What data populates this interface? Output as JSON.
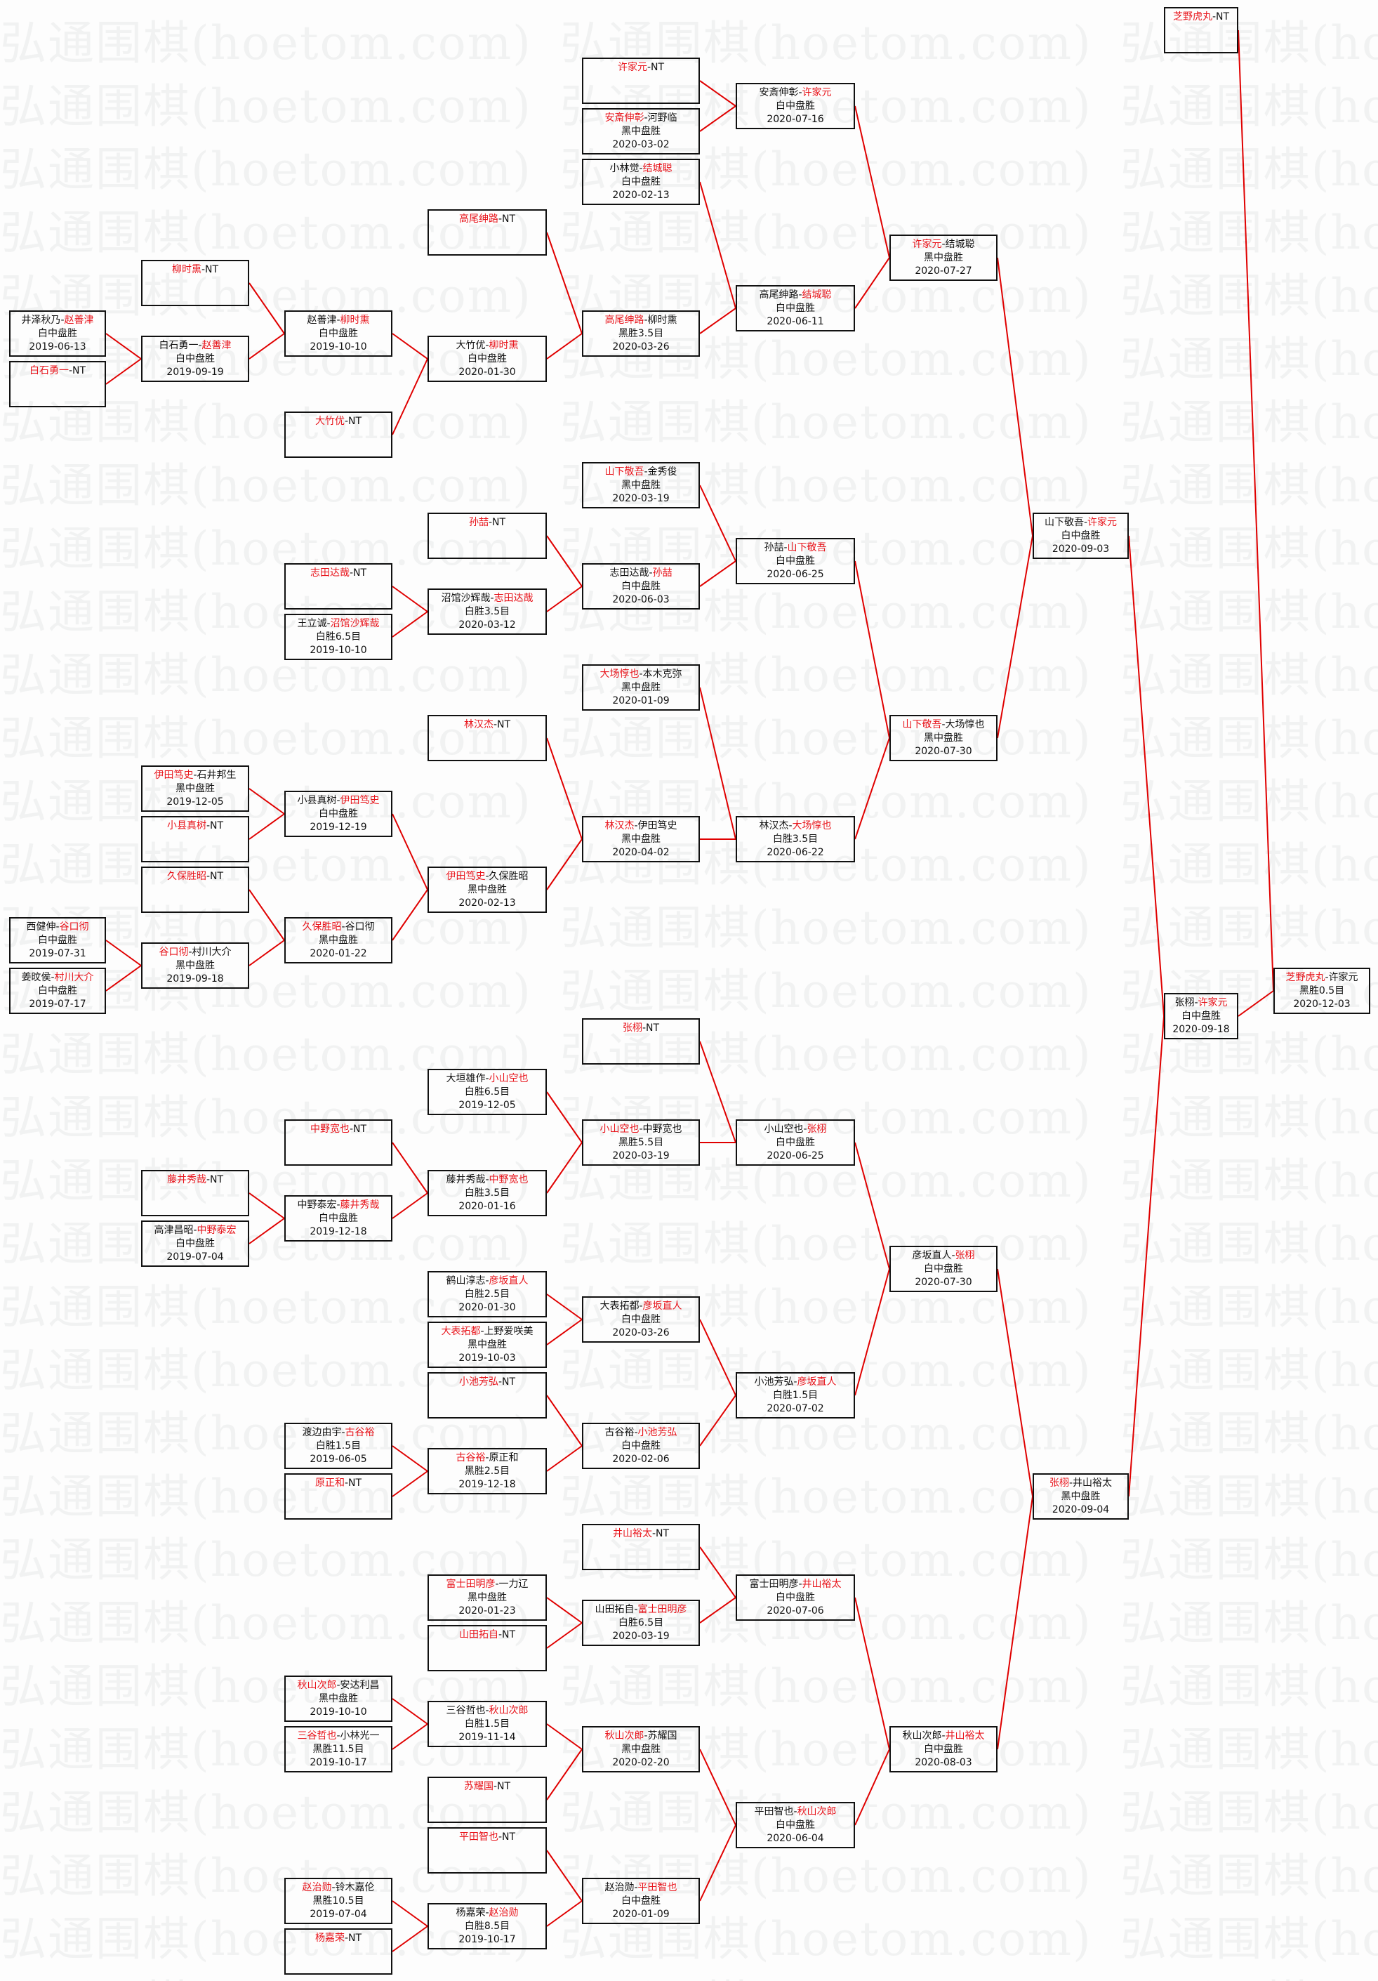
{
  "watermark": "弘通围棋(hoetom.com)",
  "colors": {
    "winner": "#e8141b",
    "link": "#e00000",
    "border": "#111111",
    "background": "#fdfdfd"
  },
  "bye_label": "NT",
  "separator": "-",
  "matches": [
    {
      "id": "m1",
      "players": [
        "井泽秋乃",
        "赵善津"
      ],
      "winner": 1,
      "result": "白中盘胜",
      "date": "2019-06-13",
      "next": "m3"
    },
    {
      "id": "m2",
      "players": [
        "白石勇一"
      ],
      "winner": 0,
      "bye": true,
      "next": "m3"
    },
    {
      "id": "m3",
      "players": [
        "白石勇一",
        "赵善津"
      ],
      "winner": 1,
      "result": "白中盘胜",
      "date": "2019-09-19",
      "next": "m5"
    },
    {
      "id": "m4",
      "players": [
        "柳时熏"
      ],
      "winner": 0,
      "bye": true,
      "next": "m5"
    },
    {
      "id": "m5",
      "players": [
        "赵善津",
        "柳时熏"
      ],
      "winner": 1,
      "result": "白中盘胜",
      "date": "2019-10-10",
      "next": "m7"
    },
    {
      "id": "m6",
      "players": [
        "大竹优"
      ],
      "winner": 0,
      "bye": true,
      "next": "m7"
    },
    {
      "id": "m7",
      "players": [
        "大竹优",
        "柳时熏"
      ],
      "winner": 1,
      "result": "白中盘胜",
      "date": "2020-01-30",
      "next": "m9"
    },
    {
      "id": "m8",
      "players": [
        "高尾绅路"
      ],
      "winner": 0,
      "bye": true,
      "next": "m9"
    },
    {
      "id": "m9",
      "players": [
        "高尾绅路",
        "柳时熏"
      ],
      "winner": 0,
      "result": "黑胜3.5目",
      "date": "2020-03-26",
      "next": "m13"
    },
    {
      "id": "m10",
      "players": [
        "许家元"
      ],
      "winner": 0,
      "bye": true,
      "next": "m12"
    },
    {
      "id": "m11",
      "players": [
        "安斎伸彰",
        "河野临"
      ],
      "winner": 0,
      "result": "黑中盘胜",
      "date": "2020-03-02",
      "next": "m12"
    },
    {
      "id": "m12",
      "players": [
        "安斎伸彰",
        "许家元"
      ],
      "winner": 1,
      "result": "白中盘胜",
      "date": "2020-07-16",
      "next": "m15"
    },
    {
      "id": "m14",
      "players": [
        "小林觉",
        "结城聪"
      ],
      "winner": 1,
      "result": "白中盘胜",
      "date": "2020-02-13",
      "next": "m13"
    },
    {
      "id": "m13",
      "players": [
        "高尾绅路",
        "结城聪"
      ],
      "winner": 1,
      "result": "白中盘胜",
      "date": "2020-06-11",
      "next": "m15"
    },
    {
      "id": "m15",
      "players": [
        "许家元",
        "结城聪"
      ],
      "winner": 0,
      "result": "黑中盘胜",
      "date": "2020-07-27",
      "next": "m37"
    },
    {
      "id": "m16",
      "players": [
        "志田达哉"
      ],
      "winner": 0,
      "bye": true,
      "next": "m18"
    },
    {
      "id": "m17",
      "players": [
        "王立诚",
        "沼馆沙辉哉"
      ],
      "winner": 1,
      "result": "白胜6.5目",
      "date": "2019-10-10",
      "next": "m18"
    },
    {
      "id": "m18",
      "players": [
        "沼馆沙辉哉",
        "志田达哉"
      ],
      "winner": 1,
      "result": "白胜3.5目",
      "date": "2020-03-12",
      "next": "m20"
    },
    {
      "id": "m19",
      "players": [
        "孙喆"
      ],
      "winner": 0,
      "bye": true,
      "next": "m20"
    },
    {
      "id": "m20",
      "players": [
        "志田达哉",
        "孙喆"
      ],
      "winner": 1,
      "result": "白中盘胜",
      "date": "2020-06-03",
      "next": "m22"
    },
    {
      "id": "m21",
      "players": [
        "山下敬吾",
        "金秀俊"
      ],
      "winner": 0,
      "result": "黑中盘胜",
      "date": "2020-03-19",
      "next": "m22"
    },
    {
      "id": "m22",
      "players": [
        "孙喆",
        "山下敬吾"
      ],
      "winner": 1,
      "result": "白中盘胜",
      "date": "2020-06-25",
      "next": "m36"
    },
    {
      "id": "m23",
      "players": [
        "伊田笃史",
        "石井邦生"
      ],
      "winner": 0,
      "result": "黑中盘胜",
      "date": "2019-12-05",
      "next": "m25"
    },
    {
      "id": "m24",
      "players": [
        "小县真树"
      ],
      "winner": 0,
      "bye": true,
      "next": "m25"
    },
    {
      "id": "m25",
      "players": [
        "小县真树",
        "伊田笃史"
      ],
      "winner": 1,
      "result": "白中盘胜",
      "date": "2019-12-19",
      "next": "m31"
    },
    {
      "id": "m26",
      "players": [
        "西健伸",
        "谷口彻"
      ],
      "winner": 1,
      "result": "白中盘胜",
      "date": "2019-07-31",
      "next": "m28"
    },
    {
      "id": "m27",
      "players": [
        "姜旼侯",
        "村川大介"
      ],
      "winner": 1,
      "result": "白中盘胜",
      "date": "2019-07-17",
      "next": "m28"
    },
    {
      "id": "m28",
      "players": [
        "谷口彻",
        "村川大介"
      ],
      "winner": 0,
      "result": "黑中盘胜",
      "date": "2019-09-18",
      "next": "m30"
    },
    {
      "id": "m29",
      "players": [
        "久保胜昭"
      ],
      "winner": 0,
      "bye": true,
      "next": "m30"
    },
    {
      "id": "m30",
      "players": [
        "久保胜昭",
        "谷口彻"
      ],
      "winner": 0,
      "result": "黑中盘胜",
      "date": "2020-01-22",
      "next": "m31"
    },
    {
      "id": "m31",
      "players": [
        "伊田笃史",
        "久保胜昭"
      ],
      "winner": 0,
      "result": "黑中盘胜",
      "date": "2020-02-13",
      "next": "m33"
    },
    {
      "id": "m32",
      "players": [
        "林汉杰"
      ],
      "winner": 0,
      "bye": true,
      "next": "m33"
    },
    {
      "id": "m33",
      "players": [
        "林汉杰",
        "伊田笃史"
      ],
      "winner": 0,
      "result": "黑中盘胜",
      "date": "2020-04-02",
      "next": "m35"
    },
    {
      "id": "m34",
      "players": [
        "大场惇也",
        "本木克弥"
      ],
      "winner": 0,
      "result": "黑中盘胜",
      "date": "2020-01-09",
      "next": "m35"
    },
    {
      "id": "m35",
      "players": [
        "林汉杰",
        "大场惇也"
      ],
      "winner": 1,
      "result": "白胜3.5目",
      "date": "2020-06-22",
      "next": "m36"
    },
    {
      "id": "m36",
      "players": [
        "山下敬吾",
        "大场惇也"
      ],
      "winner": 0,
      "result": "黑中盘胜",
      "date": "2020-07-30",
      "next": "m37"
    },
    {
      "id": "m37",
      "players": [
        "山下敬吾",
        "许家元"
      ],
      "winner": 1,
      "result": "白中盘胜",
      "date": "2020-09-03",
      "next": "m72"
    },
    {
      "id": "m38",
      "players": [
        "张栩"
      ],
      "winner": 0,
      "bye": true,
      "next": "m42"
    },
    {
      "id": "m39",
      "players": [
        "大垣雄作",
        "小山空也"
      ],
      "winner": 1,
      "result": "白胜6.5目",
      "date": "2019-12-05",
      "next": "m41"
    },
    {
      "id": "m40",
      "players": [
        "中野宽也"
      ],
      "winner": 0,
      "bye": true,
      "next": "m43"
    },
    {
      "id": "m44",
      "players": [
        "藤井秀哉"
      ],
      "winner": 0,
      "bye": true,
      "next": "m45"
    },
    {
      "id": "m46",
      "players": [
        "高津昌昭",
        "中野泰宏"
      ],
      "winner": 1,
      "result": "白中盘胜",
      "date": "2019-07-04",
      "next": "m45"
    },
    {
      "id": "m45",
      "players": [
        "中野泰宏",
        "藤井秀哉"
      ],
      "winner": 1,
      "result": "白中盘胜",
      "date": "2019-12-18",
      "next": "m43"
    },
    {
      "id": "m43",
      "players": [
        "藤井秀哉",
        "中野宽也"
      ],
      "winner": 1,
      "result": "白胜3.5目",
      "date": "2020-01-16",
      "next": "m41"
    },
    {
      "id": "m41",
      "players": [
        "小山空也",
        "中野宽也"
      ],
      "winner": 0,
      "result": "黑胜5.5目",
      "date": "2020-03-19",
      "next": "m42"
    },
    {
      "id": "m42",
      "players": [
        "小山空也",
        "张栩"
      ],
      "winner": 1,
      "result": "白中盘胜",
      "date": "2020-06-25",
      "next": "m50"
    },
    {
      "id": "m47",
      "players": [
        "鹤山淳志",
        "彦坂直人"
      ],
      "winner": 1,
      "result": "白胜2.5目",
      "date": "2020-01-30",
      "next": "m49"
    },
    {
      "id": "m48",
      "players": [
        "大表拓都",
        "上野爱咲美"
      ],
      "winner": 0,
      "result": "黑中盘胜",
      "date": "2019-10-03",
      "next": "m49"
    },
    {
      "id": "m49",
      "players": [
        "大表拓都",
        "彦坂直人"
      ],
      "winner": 1,
      "result": "白中盘胜",
      "date": "2020-03-26",
      "next": "m53"
    },
    {
      "id": "m55",
      "players": [
        "小池芳弘"
      ],
      "winner": 0,
      "bye": true,
      "next": "m54"
    },
    {
      "id": "m51",
      "players": [
        "渡边由宇",
        "古谷裕"
      ],
      "winner": 1,
      "result": "白胜1.5目",
      "date": "2019-06-05",
      "next": "m52"
    },
    {
      "id": "m56b",
      "players": [
        "原正和"
      ],
      "winner": 0,
      "bye": true,
      "next": "m52"
    },
    {
      "id": "m52",
      "players": [
        "古谷裕",
        "原正和"
      ],
      "winner": 0,
      "result": "黑胜2.5目",
      "date": "2019-12-18",
      "next": "m54"
    },
    {
      "id": "m54",
      "players": [
        "古谷裕",
        "小池芳弘"
      ],
      "winner": 1,
      "result": "白中盘胜",
      "date": "2020-02-06",
      "next": "m53"
    },
    {
      "id": "m53",
      "players": [
        "小池芳弘",
        "彦坂直人"
      ],
      "winner": 1,
      "result": "白胜1.5目",
      "date": "2020-07-02",
      "next": "m50"
    },
    {
      "id": "m50",
      "players": [
        "彦坂直人",
        "张栩"
      ],
      "winner": 1,
      "result": "白中盘胜",
      "date": "2020-07-30",
      "next": "m60"
    },
    {
      "id": "m56",
      "players": [
        "井山裕太"
      ],
      "winner": 0,
      "bye": true,
      "next": "m58"
    },
    {
      "id": "m57a",
      "players": [
        "富士田明彦",
        "一力辽"
      ],
      "winner": 0,
      "result": "黑中盘胜",
      "date": "2020-01-23",
      "next": "m57"
    },
    {
      "id": "m57b",
      "players": [
        "山田拓自"
      ],
      "winner": 0,
      "bye": true,
      "next": "m57"
    },
    {
      "id": "m57",
      "players": [
        "山田拓自",
        "富士田明彦"
      ],
      "winner": 1,
      "result": "白胜6.5目",
      "date": "2020-03-19",
      "next": "m58"
    },
    {
      "id": "m58",
      "players": [
        "富士田明彦",
        "井山裕太"
      ],
      "winner": 1,
      "result": "白中盘胜",
      "date": "2020-07-06",
      "next": "m59"
    },
    {
      "id": "m61",
      "players": [
        "秋山次郎",
        "安达利昌"
      ],
      "winner": 0,
      "result": "黑中盘胜",
      "date": "2019-10-10",
      "next": "m62"
    },
    {
      "id": "m63",
      "players": [
        "三谷哲也",
        "小林光一"
      ],
      "winner": 0,
      "result": "黑胜11.5目",
      "date": "2019-10-17",
      "next": "m62"
    },
    {
      "id": "m62",
      "players": [
        "三谷哲也",
        "秋山次郎"
      ],
      "winner": 1,
      "result": "白胜1.5目",
      "date": "2019-11-14",
      "next": "m64"
    },
    {
      "id": "m65",
      "players": [
        "苏耀国"
      ],
      "winner": 0,
      "bye": true,
      "next": "m64"
    },
    {
      "id": "m64",
      "players": [
        "秋山次郎",
        "苏耀国"
      ],
      "winner": 0,
      "result": "黑中盘胜",
      "date": "2020-02-20",
      "next": "m66"
    },
    {
      "id": "m67",
      "players": [
        "平田智也"
      ],
      "winner": 0,
      "bye": true,
      "next": "m68"
    },
    {
      "id": "m69",
      "players": [
        "赵治勋",
        "铃木嘉伦"
      ],
      "winner": 0,
      "result": "黑胜10.5目",
      "date": "2019-07-04",
      "next": "m70"
    },
    {
      "id": "m71",
      "players": [
        "杨嘉荣"
      ],
      "winner": 0,
      "bye": true,
      "next": "m70"
    },
    {
      "id": "m70",
      "players": [
        "杨嘉荣",
        "赵治勋"
      ],
      "winner": 1,
      "result": "白胜8.5目",
      "date": "2019-10-17",
      "next": "m68"
    },
    {
      "id": "m68",
      "players": [
        "赵治勋",
        "平田智也"
      ],
      "winner": 1,
      "result": "白中盘胜",
      "date": "2020-01-09",
      "next": "m66"
    },
    {
      "id": "m66",
      "players": [
        "平田智也",
        "秋山次郎"
      ],
      "winner": 1,
      "result": "白中盘胜",
      "date": "2020-06-04",
      "next": "m59"
    },
    {
      "id": "m59",
      "players": [
        "秋山次郎",
        "井山裕太"
      ],
      "winner": 1,
      "result": "白中盘胜",
      "date": "2020-08-03",
      "next": "m60"
    },
    {
      "id": "m60",
      "players": [
        "张栩",
        "井山裕太"
      ],
      "winner": 0,
      "result": "黑中盘胜",
      "date": "2020-09-04",
      "next": "m72"
    },
    {
      "id": "m72",
      "players": [
        "张栩",
        "许家元"
      ],
      "winner": 1,
      "result": "白中盘胜",
      "date": "2020-09-18",
      "next": "m74"
    },
    {
      "id": "m73",
      "players": [
        "芝野虎丸"
      ],
      "winner": 0,
      "bye": true,
      "next": "m74"
    },
    {
      "id": "m74",
      "players": [
        "芝野虎丸",
        "许家元"
      ],
      "winner": 0,
      "result": "黑胜0.5目",
      "date": "2020-12-03"
    }
  ]
}
